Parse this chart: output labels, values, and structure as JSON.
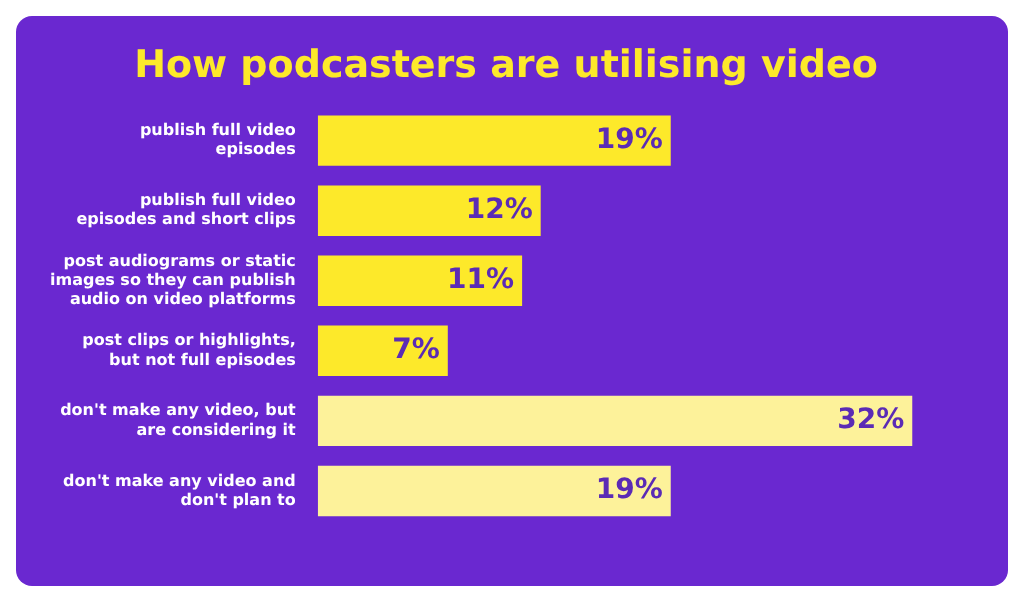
{
  "chart_data": {
    "type": "bar",
    "orientation": "horizontal",
    "title": "How podcasters are utilising video",
    "categories": [
      "publish full video episodes",
      "publish full video episodes and short clips",
      "post audiograms or static images so they can publish audio on video platforms",
      "post clips or highlights, but not full episodes",
      "don't make any video, but are considering it",
      "don't make any video and don't plan to"
    ],
    "values": [
      19,
      12,
      11,
      7,
      32,
      19
    ],
    "colors": [
      "#fde92a",
      "#fde92a",
      "#fde92a",
      "#fde92a",
      "#fdf29a",
      "#fdf29a"
    ],
    "value_labels": [
      "19%",
      "12%",
      "11%",
      "7%",
      "32%",
      "19%"
    ],
    "legend": false
  }
}
